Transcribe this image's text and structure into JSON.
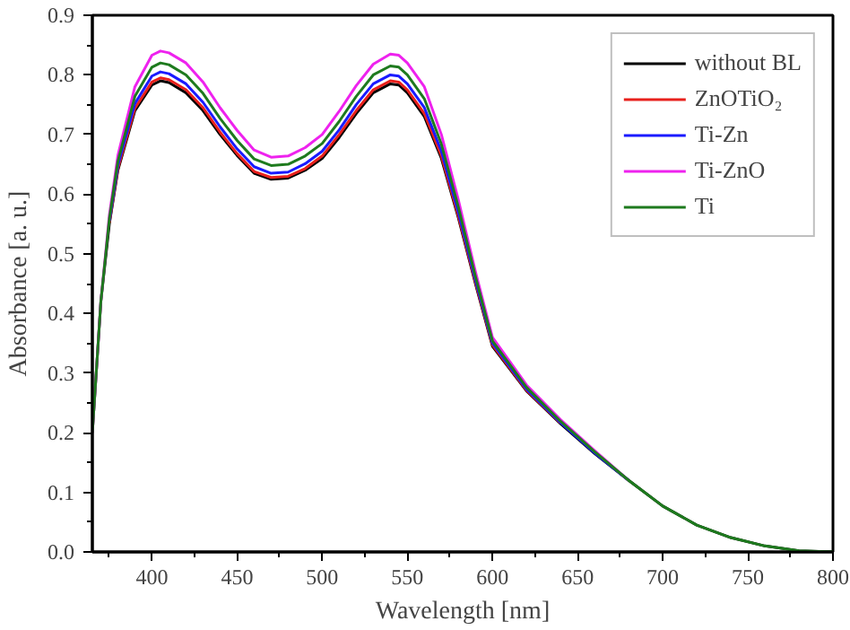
{
  "chart_data": {
    "type": "line",
    "xlabel": "Wavelength [nm]",
    "ylabel": "Absorbance [a. u.]",
    "x": [
      365,
      370,
      375,
      380,
      390,
      400,
      405,
      410,
      420,
      430,
      440,
      450,
      460,
      470,
      480,
      490,
      500,
      510,
      520,
      530,
      540,
      545,
      550,
      560,
      570,
      580,
      590,
      600,
      620,
      640,
      660,
      680,
      700,
      720,
      740,
      760,
      780,
      800
    ],
    "series": [
      {
        "name": "without BL",
        "color": "#000000",
        "values": [
          0.2,
          0.42,
          0.55,
          0.64,
          0.74,
          0.783,
          0.79,
          0.787,
          0.77,
          0.74,
          0.7,
          0.665,
          0.635,
          0.625,
          0.627,
          0.64,
          0.66,
          0.695,
          0.735,
          0.77,
          0.785,
          0.783,
          0.77,
          0.73,
          0.66,
          0.56,
          0.45,
          0.345,
          0.27,
          0.215,
          0.165,
          0.12,
          0.077,
          0.045,
          0.024,
          0.01,
          0.002,
          0.0
        ]
      },
      {
        "name": "ZnOTiO₂",
        "color": "#e8201c",
        "values": [
          null,
          null,
          0.552,
          0.643,
          0.744,
          0.788,
          0.795,
          0.792,
          0.775,
          0.745,
          0.704,
          0.668,
          0.638,
          0.628,
          0.63,
          0.643,
          0.664,
          0.7,
          0.74,
          0.775,
          0.79,
          0.788,
          0.775,
          0.735,
          0.664,
          0.563,
          0.452,
          0.347,
          0.271,
          0.216,
          null,
          null,
          null,
          null,
          null,
          null,
          null,
          null
        ]
      },
      {
        "name": "Ti-Zn",
        "color": "#1a1aff",
        "values": [
          null,
          null,
          0.555,
          0.648,
          0.752,
          0.798,
          0.805,
          0.802,
          0.785,
          0.754,
          0.713,
          0.676,
          0.646,
          0.635,
          0.637,
          0.651,
          0.672,
          0.708,
          0.75,
          0.785,
          0.8,
          0.798,
          0.785,
          0.745,
          0.672,
          0.569,
          0.456,
          0.35,
          0.273,
          0.217,
          0.166,
          0.12,
          null,
          null,
          null,
          null,
          null,
          null
        ]
      },
      {
        "name": "Ti-ZnO",
        "color": "#ee22ee",
        "values": [
          0.2,
          0.42,
          0.565,
          0.665,
          0.78,
          0.833,
          0.84,
          0.837,
          0.82,
          0.788,
          0.745,
          0.707,
          0.674,
          0.662,
          0.664,
          0.678,
          0.7,
          0.739,
          0.782,
          0.818,
          0.835,
          0.833,
          0.82,
          0.78,
          0.7,
          0.59,
          0.47,
          0.36,
          0.28,
          0.222,
          0.17,
          0.12,
          null,
          null,
          null,
          null,
          null,
          null
        ]
      },
      {
        "name": "Ti",
        "color": "#1e7a1e",
        "values": [
          0.2,
          0.42,
          0.559,
          0.655,
          0.764,
          0.813,
          0.82,
          0.817,
          0.8,
          0.769,
          0.727,
          0.69,
          0.659,
          0.648,
          0.65,
          0.664,
          0.685,
          0.722,
          0.764,
          0.8,
          0.815,
          0.813,
          0.8,
          0.76,
          0.684,
          0.578,
          0.462,
          0.354,
          0.276,
          0.219,
          0.168,
          0.12,
          0.077,
          0.045,
          0.024,
          0.01,
          0.002,
          0.0
        ]
      }
    ],
    "xlim": [
      365,
      800
    ],
    "xticks": [
      400,
      450,
      500,
      550,
      600,
      650,
      700,
      750,
      800,
      {
        "value": 375,
        "label": null
      },
      {
        "value": 425,
        "label": null
      },
      {
        "value": 475,
        "label": null
      },
      {
        "value": 525,
        "label": null
      },
      {
        "value": 575,
        "label": null
      },
      {
        "value": 625,
        "label": null
      },
      {
        "value": 675,
        "label": null
      },
      {
        "value": 725,
        "label": null
      },
      {
        "value": 775,
        "label": null
      }
    ],
    "ylim": [
      0,
      0.9
    ],
    "yticks": [
      {
        "value": 0,
        "label": "0.0"
      },
      0.1,
      0.2,
      0.3,
      0.4,
      0.5,
      0.6,
      0.7,
      0.8,
      0.9,
      {
        "value": 0.05,
        "label": null
      },
      {
        "value": 0.15,
        "label": null
      },
      {
        "value": 0.25,
        "label": null
      },
      {
        "value": 0.35,
        "label": null
      },
      {
        "value": 0.45,
        "label": null
      },
      {
        "value": 0.55,
        "label": null
      },
      {
        "value": 0.65,
        "label": null
      },
      {
        "value": 0.75,
        "label": null
      },
      {
        "value": 0.85,
        "label": null
      }
    ],
    "grid": false,
    "legend": "top right",
    "marker": "none",
    "line_style": "solid"
  }
}
